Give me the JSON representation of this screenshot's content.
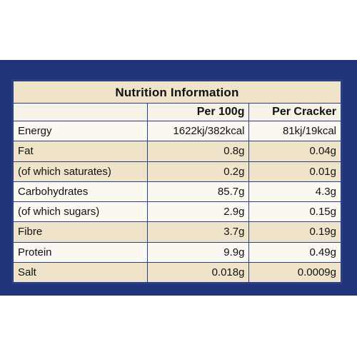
{
  "table": {
    "title": "Nutrition Information",
    "headers": [
      "",
      "Per 100g",
      "Per Cracker"
    ],
    "rows": [
      {
        "nutrient": "Energy",
        "per_100g": "1622kj/382kcal",
        "per_cracker": "81kj/19kcal"
      },
      {
        "nutrient": "Fat",
        "per_100g": "0.8g",
        "per_cracker": "0.04g"
      },
      {
        "nutrient": "(of which saturates)",
        "per_100g": "0.2g",
        "per_cracker": "0.01g"
      },
      {
        "nutrient": "Carbohydrates",
        "per_100g": "85.7g",
        "per_cracker": "4.3g"
      },
      {
        "nutrient": "(of which sugars)",
        "per_100g": "2.9g",
        "per_cracker": "0.15g"
      },
      {
        "nutrient": "Fibre",
        "per_100g": "3.7g",
        "per_cracker": "0.19g"
      },
      {
        "nutrient": "Protein",
        "per_100g": "9.9g",
        "per_cracker": "0.49g"
      },
      {
        "nutrient": "Salt",
        "per_100g": "0.018g",
        "per_cracker": "0.0009g"
      }
    ]
  },
  "colors": {
    "panel_blue": "#1f3479",
    "border_blue": "#2b3f86",
    "row_light": "#fbf8f1",
    "row_tan": "#efe4c9"
  }
}
